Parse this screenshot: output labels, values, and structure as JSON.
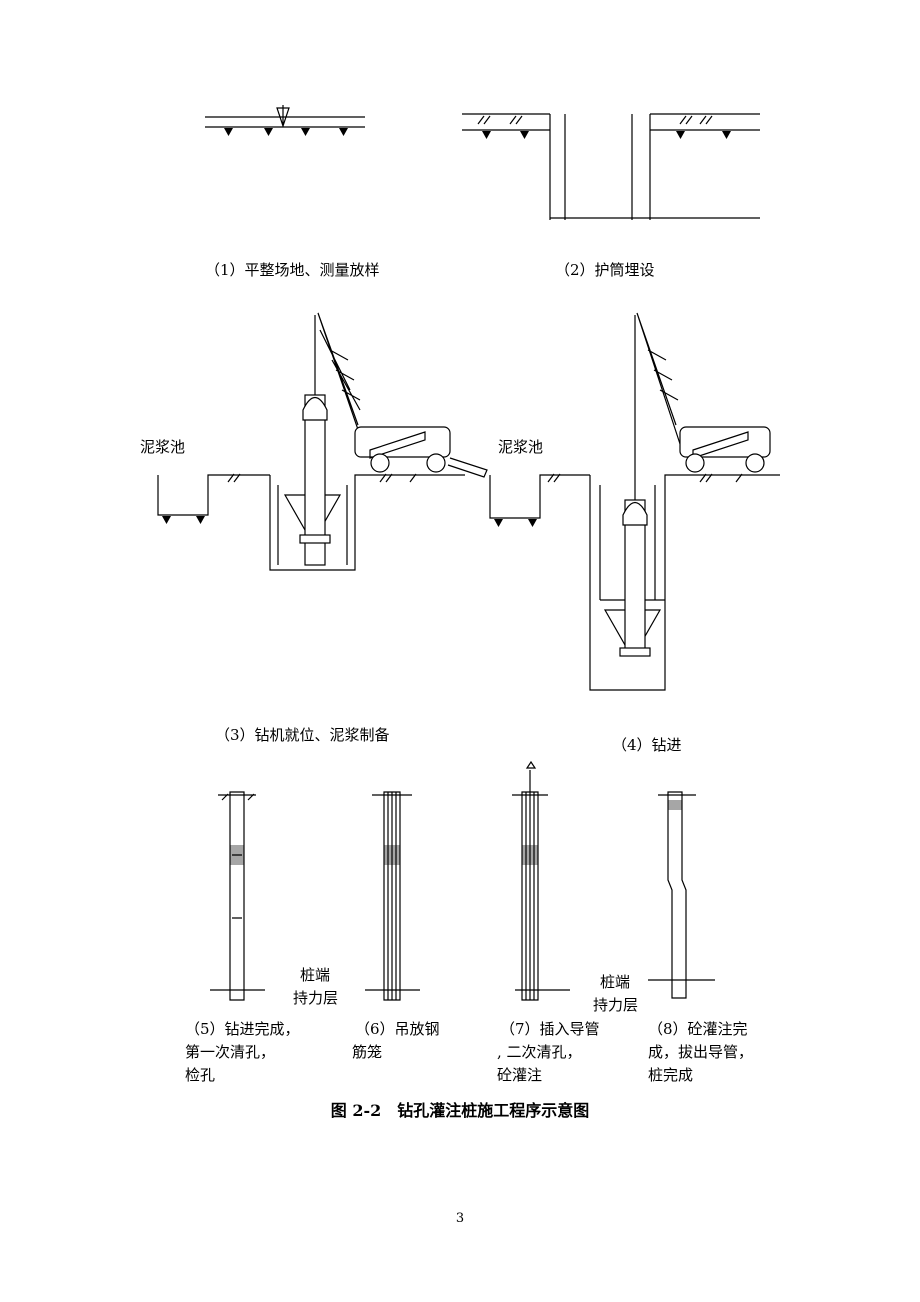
{
  "steps": [
    {
      "caption": [
        "（1）平整场地、测量放样"
      ]
    },
    {
      "caption": [
        "（2）护筒埋设"
      ]
    },
    {
      "caption": [
        "（3）钻机就位、泥浆制备"
      ]
    },
    {
      "caption": [
        "（4）钻进"
      ]
    },
    {
      "caption": [
        "（5）钻进完成，",
        "第一次清孔，",
        "检孔"
      ]
    },
    {
      "caption": [
        "（6）吊放钢",
        "筋笼"
      ]
    },
    {
      "caption": [
        "（7）插入导管",
        ", 二次清孔，",
        "砼灌注"
      ]
    },
    {
      "caption": [
        "（8）砼灌注完",
        "成，拔出导管，",
        "桩完成"
      ]
    }
  ],
  "mud_pit_labels": [
    "泥浆池",
    "泥浆池"
  ],
  "bearing_layer_labels": [
    [
      "桩端",
      "持力层"
    ],
    [
      "桩端",
      "持力层"
    ]
  ],
  "figure_caption": "图 2-2　钻孔灌注桩施工程序示意图",
  "page_number": "3"
}
